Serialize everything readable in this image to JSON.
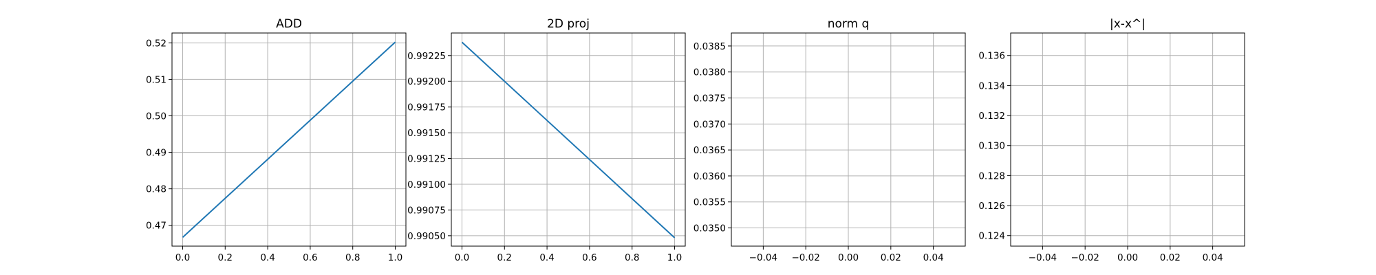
{
  "chart_data": [
    {
      "type": "line",
      "title": "ADD",
      "xlabel": "",
      "ylabel": "",
      "xlim": [
        -0.05,
        1.05
      ],
      "ylim": [
        0.4643,
        0.5227
      ],
      "grid": true,
      "xticks": [
        0.0,
        0.2,
        0.4,
        0.6,
        0.8,
        1.0
      ],
      "xtick_labels": [
        "0.0",
        "0.2",
        "0.4",
        "0.6",
        "0.8",
        "1.0"
      ],
      "yticks": [
        0.47,
        0.48,
        0.49,
        0.5,
        0.51,
        0.52
      ],
      "ytick_labels": [
        "0.47",
        "0.48",
        "0.49",
        "0.50",
        "0.51",
        "0.52"
      ],
      "series": [
        {
          "x": [
            0,
            1
          ],
          "y": [
            0.4667,
            0.5202
          ],
          "color": "#1f77b4"
        }
      ]
    },
    {
      "type": "line",
      "title": "2D proj",
      "xlabel": "",
      "ylabel": "",
      "xlim": [
        -0.05,
        1.05
      ],
      "ylim": [
        0.990399,
        0.992469
      ],
      "grid": true,
      "xticks": [
        0.0,
        0.2,
        0.4,
        0.6,
        0.8,
        1.0
      ],
      "xtick_labels": [
        "0.0",
        "0.2",
        "0.4",
        "0.6",
        "0.8",
        "1.0"
      ],
      "yticks": [
        0.9905,
        0.99075,
        0.991,
        0.99125,
        0.9915,
        0.99175,
        0.992,
        0.99225
      ],
      "ytick_labels": [
        "0.99050",
        "0.99075",
        "0.99100",
        "0.99125",
        "0.99150",
        "0.99175",
        "0.99200",
        "0.99225"
      ],
      "series": [
        {
          "x": [
            0,
            1
          ],
          "y": [
            0.99238,
            0.99048
          ],
          "color": "#1f77b4"
        }
      ]
    },
    {
      "type": "line",
      "title": "norm q",
      "xlabel": "",
      "ylabel": "",
      "xlim": [
        -0.055,
        0.055
      ],
      "ylim": [
        0.03465,
        0.03875
      ],
      "grid": true,
      "xticks": [
        -0.04,
        -0.02,
        0.0,
        0.02,
        0.04
      ],
      "xtick_labels": [
        "−0.04",
        "−0.02",
        "0.00",
        "0.02",
        "0.04"
      ],
      "yticks": [
        0.035,
        0.0355,
        0.036,
        0.0365,
        0.037,
        0.0375,
        0.038,
        0.0385
      ],
      "ytick_labels": [
        "0.0350",
        "0.0355",
        "0.0360",
        "0.0365",
        "0.0370",
        "0.0375",
        "0.0380",
        "0.0385"
      ],
      "series": []
    },
    {
      "type": "line",
      "title": "|x-x^|",
      "xlabel": "",
      "ylabel": "",
      "xlim": [
        -0.055,
        0.055
      ],
      "ylim": [
        0.1233,
        0.1375
      ],
      "grid": true,
      "xticks": [
        -0.04,
        -0.02,
        0.0,
        0.02,
        0.04
      ],
      "xtick_labels": [
        "−0.04",
        "−0.02",
        "0.00",
        "0.02",
        "0.04"
      ],
      "yticks": [
        0.124,
        0.126,
        0.128,
        0.13,
        0.132,
        0.134,
        0.136
      ],
      "ytick_labels": [
        "0.124",
        "0.126",
        "0.128",
        "0.130",
        "0.132",
        "0.134",
        "0.136"
      ],
      "series": []
    }
  ]
}
